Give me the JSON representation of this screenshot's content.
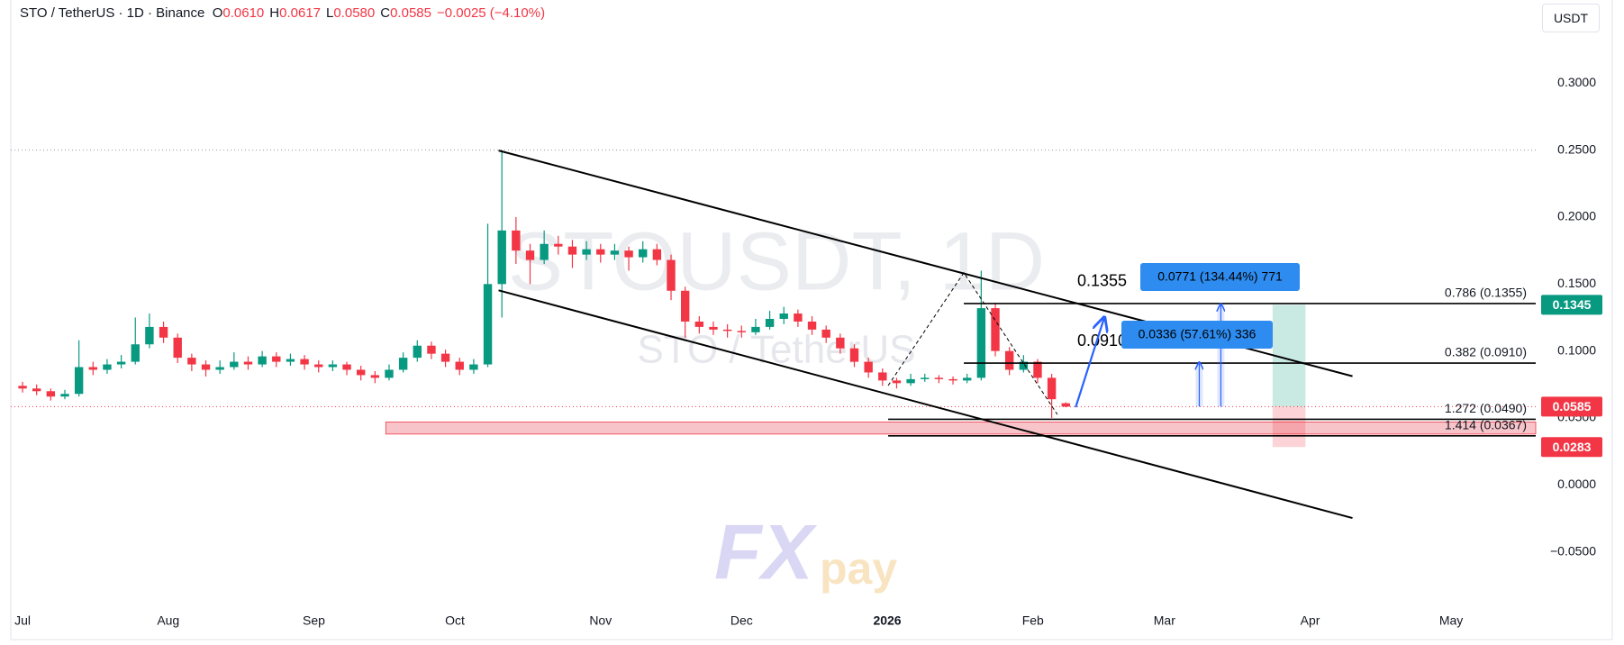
{
  "header": {
    "symbol": "STO / TetherUS · 1D · Binance",
    "o": "O",
    "o_value": "0.0610",
    "h": "H",
    "h_value": "0.0617",
    "l": "L",
    "l_value": "0.0580",
    "c": "C",
    "c_value": "0.0585",
    "change": "−0.0025 (−4.10%)"
  },
  "currency": "USDT",
  "watermark": {
    "line1": "STOUSDT, 1D",
    "line2": "STO / TetherUS"
  },
  "logo": {
    "fx": "FX",
    "pay": "pay"
  },
  "chart_data": {
    "type": "candlestick",
    "up_color": "#089981",
    "down_color": "#f23645",
    "xlim": [
      -2.5,
      322
    ],
    "ylim": [
      -0.1,
      0.35
    ],
    "xticks": [
      {
        "value": 0,
        "label": "Jul"
      },
      {
        "value": 31,
        "label": "Aug"
      },
      {
        "value": 62,
        "label": "Sep"
      },
      {
        "value": 92,
        "label": "Oct"
      },
      {
        "value": 123,
        "label": "Nov"
      },
      {
        "value": 153,
        "label": "Dec"
      },
      {
        "value": 184,
        "label": "2026",
        "bold": true
      },
      {
        "value": 215,
        "label": "Feb"
      },
      {
        "value": 243,
        "label": "Mar"
      },
      {
        "value": 274,
        "label": "Apr"
      },
      {
        "value": 304,
        "label": "May"
      }
    ],
    "yticks": [
      {
        "value": 0.3,
        "label": "0.3000"
      },
      {
        "value": 0.25,
        "label": "0.2500"
      },
      {
        "value": 0.2,
        "label": "0.2000"
      },
      {
        "value": 0.15,
        "label": "0.1500"
      },
      {
        "value": 0.1,
        "label": "0.1000"
      },
      {
        "value": 0.05,
        "label": "0.0500"
      },
      {
        "value": 0,
        "label": "0.0000"
      },
      {
        "value": -0.05,
        "label": "−0.0500"
      }
    ],
    "grid": false,
    "candles": [
      [
        0,
        0.074,
        0.077,
        0.069,
        0.072
      ],
      [
        3,
        0.072,
        0.075,
        0.067,
        0.07
      ],
      [
        6,
        0.07,
        0.072,
        0.063,
        0.066
      ],
      [
        9,
        0.066,
        0.071,
        0.064,
        0.068
      ],
      [
        12,
        0.068,
        0.108,
        0.066,
        0.088
      ],
      [
        15,
        0.088,
        0.092,
        0.082,
        0.086
      ],
      [
        18,
        0.086,
        0.094,
        0.083,
        0.09
      ],
      [
        21,
        0.09,
        0.097,
        0.087,
        0.092
      ],
      [
        24,
        0.092,
        0.125,
        0.09,
        0.105
      ],
      [
        27,
        0.105,
        0.128,
        0.102,
        0.118
      ],
      [
        30,
        0.118,
        0.122,
        0.106,
        0.11
      ],
      [
        33,
        0.11,
        0.113,
        0.091,
        0.095
      ],
      [
        36,
        0.095,
        0.098,
        0.085,
        0.09
      ],
      [
        39,
        0.09,
        0.093,
        0.081,
        0.086
      ],
      [
        42,
        0.086,
        0.093,
        0.083,
        0.088
      ],
      [
        45,
        0.088,
        0.099,
        0.086,
        0.092
      ],
      [
        48,
        0.092,
        0.096,
        0.086,
        0.09
      ],
      [
        51,
        0.09,
        0.1,
        0.088,
        0.096
      ],
      [
        54,
        0.096,
        0.099,
        0.088,
        0.092
      ],
      [
        57,
        0.092,
        0.098,
        0.089,
        0.094
      ],
      [
        60,
        0.094,
        0.097,
        0.086,
        0.09
      ],
      [
        63,
        0.09,
        0.093,
        0.084,
        0.088
      ],
      [
        66,
        0.088,
        0.093,
        0.085,
        0.09
      ],
      [
        69,
        0.09,
        0.092,
        0.082,
        0.086
      ],
      [
        72,
        0.086,
        0.089,
        0.078,
        0.082
      ],
      [
        75,
        0.082,
        0.085,
        0.076,
        0.08
      ],
      [
        78,
        0.08,
        0.09,
        0.078,
        0.086
      ],
      [
        81,
        0.086,
        0.099,
        0.084,
        0.095
      ],
      [
        84,
        0.095,
        0.108,
        0.092,
        0.104
      ],
      [
        87,
        0.104,
        0.107,
        0.094,
        0.098
      ],
      [
        90,
        0.098,
        0.101,
        0.088,
        0.092
      ],
      [
        93,
        0.092,
        0.095,
        0.082,
        0.086
      ],
      [
        96,
        0.086,
        0.094,
        0.083,
        0.09
      ],
      [
        99,
        0.09,
        0.195,
        0.088,
        0.15
      ],
      [
        102,
        0.15,
        0.25,
        0.125,
        0.19
      ],
      [
        105,
        0.19,
        0.2,
        0.165,
        0.175
      ],
      [
        108,
        0.175,
        0.18,
        0.15,
        0.168
      ],
      [
        111,
        0.168,
        0.19,
        0.165,
        0.18
      ],
      [
        114,
        0.18,
        0.186,
        0.172,
        0.178
      ],
      [
        117,
        0.178,
        0.183,
        0.162,
        0.172
      ],
      [
        120,
        0.172,
        0.182,
        0.168,
        0.176
      ],
      [
        123,
        0.176,
        0.18,
        0.166,
        0.172
      ],
      [
        126,
        0.172,
        0.18,
        0.168,
        0.175
      ],
      [
        129,
        0.175,
        0.178,
        0.16,
        0.17
      ],
      [
        132,
        0.17,
        0.182,
        0.166,
        0.176
      ],
      [
        135,
        0.176,
        0.18,
        0.164,
        0.168
      ],
      [
        138,
        0.168,
        0.172,
        0.138,
        0.145
      ],
      [
        141,
        0.145,
        0.148,
        0.11,
        0.122
      ],
      [
        144,
        0.122,
        0.126,
        0.113,
        0.118
      ],
      [
        147,
        0.118,
        0.122,
        0.112,
        0.116
      ],
      [
        150,
        0.116,
        0.12,
        0.11,
        0.115
      ],
      [
        153,
        0.115,
        0.119,
        0.11,
        0.114
      ],
      [
        156,
        0.114,
        0.124,
        0.112,
        0.118
      ],
      [
        159,
        0.118,
        0.13,
        0.116,
        0.124
      ],
      [
        162,
        0.124,
        0.133,
        0.12,
        0.128
      ],
      [
        165,
        0.128,
        0.131,
        0.118,
        0.122
      ],
      [
        168,
        0.122,
        0.126,
        0.112,
        0.116
      ],
      [
        171,
        0.116,
        0.119,
        0.106,
        0.11
      ],
      [
        174,
        0.11,
        0.113,
        0.098,
        0.102
      ],
      [
        177,
        0.102,
        0.105,
        0.088,
        0.092
      ],
      [
        180,
        0.092,
        0.095,
        0.08,
        0.084
      ],
      [
        183,
        0.084,
        0.087,
        0.074,
        0.078
      ],
      [
        186,
        0.078,
        0.08,
        0.072,
        0.076
      ],
      [
        189,
        0.076,
        0.083,
        0.074,
        0.079
      ],
      [
        192,
        0.079,
        0.083,
        0.077,
        0.08
      ],
      [
        195,
        0.08,
        0.082,
        0.076,
        0.079
      ],
      [
        198,
        0.079,
        0.081,
        0.075,
        0.078
      ],
      [
        201,
        0.078,
        0.083,
        0.076,
        0.08
      ],
      [
        204,
        0.08,
        0.16,
        0.078,
        0.132
      ],
      [
        207,
        0.132,
        0.136,
        0.096,
        0.1
      ],
      [
        210,
        0.1,
        0.103,
        0.082,
        0.086
      ],
      [
        213,
        0.086,
        0.097,
        0.084,
        0.092
      ],
      [
        216,
        0.092,
        0.094,
        0.076,
        0.08
      ],
      [
        219,
        0.08,
        0.083,
        0.05,
        0.064
      ],
      [
        222,
        0.061,
        0.0617,
        0.058,
        0.0585
      ]
    ],
    "price_badges": [
      {
        "value": 0.1345,
        "color": "#089981"
      },
      {
        "value": 0.0585,
        "color": "#f23645"
      },
      {
        "value": 0.0283,
        "color": "#f23645"
      }
    ],
    "fib_levels": [
      {
        "label": "0.786 (0.1355)",
        "value": 0.1355,
        "from": 200.3
      },
      {
        "label": "0.382 (0.0910)",
        "value": 0.091,
        "from": 200.3
      },
      {
        "label": "1.272 (0.0490)",
        "value": 0.049,
        "from": 184.2
      },
      {
        "label": "1.414 (0.0367)",
        "value": 0.0367,
        "from": 184.2
      }
    ],
    "level_callouts": [
      "0.1355",
      "0.0910"
    ],
    "measure_boxes": [
      "0.0771 (134.44%) 771",
      "0.0336 (57.61%) 336"
    ],
    "trendlines": [
      {
        "x": [
          101.3,
          283
        ],
        "y": [
          0.2497,
          0.0812
        ]
      },
      {
        "x": [
          101.3,
          283
        ],
        "y": [
          0.1453,
          -0.0247
        ]
      }
    ],
    "zigzag": {
      "x": [
        184.2,
        200.3,
        220.2
      ],
      "y": [
        0.0742,
        0.1585,
        0.0526
      ]
    },
    "arrow": {
      "x": [
        224.1,
        230.1
      ],
      "y": [
        0.058,
        0.124
      ]
    },
    "measures": [
      {
        "x": 250.4,
        "y": [
          0.0585,
          0.091
        ]
      },
      {
        "x": 255,
        "y": [
          0.0585,
          0.1345
        ]
      }
    ],
    "zone": {
      "x": [
        77.3,
        322
      ],
      "y": [
        0.038,
        0.047
      ]
    },
    "position": {
      "x": [
        266,
        273
      ]
    }
  }
}
